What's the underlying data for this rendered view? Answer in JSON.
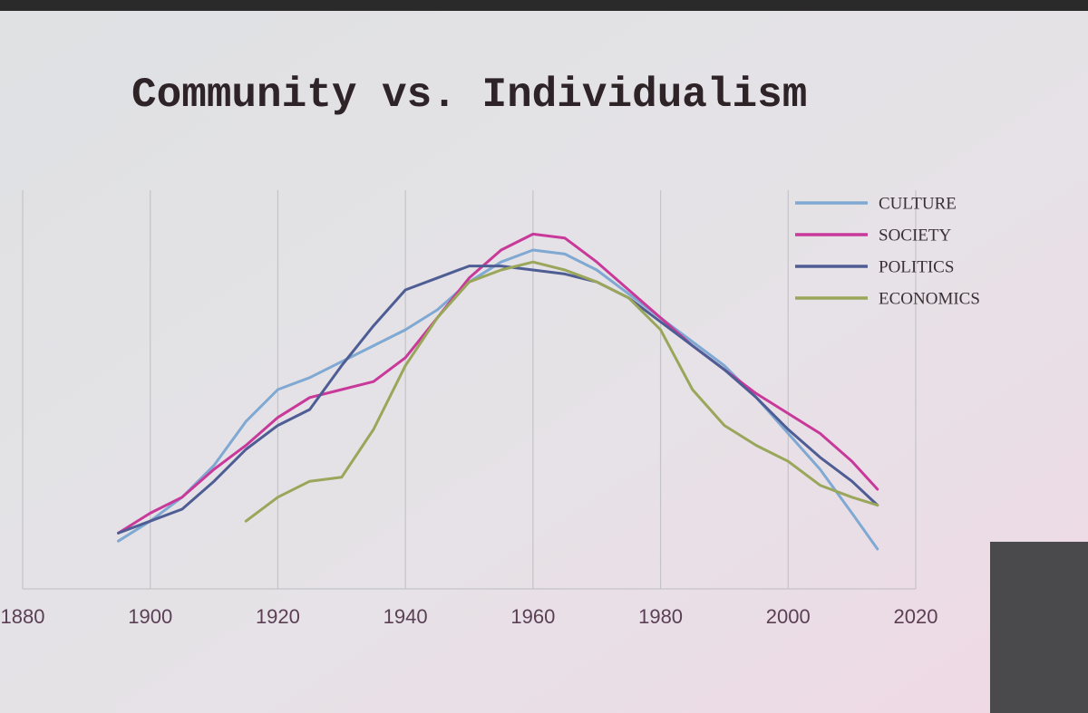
{
  "chart_data": {
    "type": "line",
    "title": "Community vs. Individualism",
    "x": [
      1895,
      1900,
      1905,
      1910,
      1915,
      1920,
      1925,
      1930,
      1935,
      1940,
      1945,
      1950,
      1955,
      1960,
      1965,
      1970,
      1975,
      1980,
      1985,
      1990,
      1995,
      2000,
      2005,
      2010,
      2014
    ],
    "series": [
      {
        "name": "CULTURE",
        "color": "#7fa9d2",
        "values": [
          12,
          17,
          23,
          31,
          42,
          50,
          53,
          57,
          61,
          65,
          70,
          77,
          82,
          85,
          84,
          80,
          74,
          68,
          62,
          56,
          48,
          39,
          30,
          19,
          10
        ]
      },
      {
        "name": "SOCIETY",
        "color": "#c8399a",
        "values": [
          14,
          19,
          23,
          30,
          36,
          43,
          48,
          50,
          52,
          58,
          68,
          78,
          85,
          89,
          88,
          82,
          75,
          68,
          61,
          55,
          49,
          44,
          39,
          32,
          25
        ]
      },
      {
        "name": "POLITICS",
        "color": "#4e5d94",
        "values": [
          14,
          17,
          20,
          27,
          35,
          41,
          45,
          56,
          66,
          75,
          78,
          81,
          81,
          80,
          79,
          77,
          73,
          67,
          61,
          55,
          48,
          40,
          33,
          27,
          21
        ]
      },
      {
        "name": "ECONOMICS",
        "color": "#9aa65a",
        "values": [
          null,
          null,
          null,
          null,
          17,
          23,
          27,
          28,
          40,
          56,
          68,
          77,
          80,
          82,
          80,
          77,
          73,
          65,
          50,
          41,
          36,
          32,
          26,
          23,
          21
        ]
      }
    ],
    "xlim": [
      1880,
      2020
    ],
    "xticks": [
      1880,
      1900,
      1920,
      1940,
      1960,
      1980,
      2000,
      2020
    ],
    "ylim": [
      0,
      100
    ],
    "grid": true,
    "legend": "top-right"
  }
}
